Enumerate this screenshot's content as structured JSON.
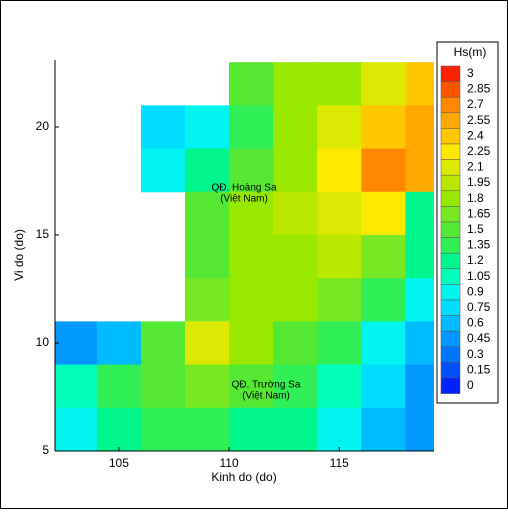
{
  "chart_data": {
    "type": "heatmap",
    "xlabel": "Kinh do (do)",
    "ylabel": "Vi do (do)",
    "xlim": [
      102.1,
      119.3
    ],
    "ylim": [
      5,
      23.1
    ],
    "xticks": [
      105,
      110,
      115
    ],
    "yticks": [
      5,
      10,
      15,
      20
    ],
    "x": [
      103,
      105,
      107,
      109,
      111,
      113,
      115,
      117,
      119
    ],
    "y": [
      22,
      20,
      18,
      16,
      14,
      12,
      10,
      8,
      6
    ],
    "values": [
      [
        null,
        null,
        null,
        null,
        1.5,
        1.8,
        1.9,
        2.1,
        2.4
      ],
      [
        null,
        null,
        0.8,
        0.9,
        1.4,
        1.8,
        2.1,
        2.5,
        2.6
      ],
      [
        null,
        null,
        1.0,
        1.2,
        1.6,
        1.9,
        2.3,
        2.8,
        2.6
      ],
      [
        null,
        null,
        null,
        1.6,
        1.9,
        2.0,
        2.2,
        2.3,
        1.3
      ],
      [
        null,
        null,
        null,
        1.6,
        1.8,
        1.9,
        2.0,
        1.7,
        1.2
      ],
      [
        null,
        null,
        null,
        1.7,
        1.8,
        1.8,
        1.7,
        1.4,
        0.9
      ],
      [
        0.5,
        0.7,
        1.6,
        2.2,
        1.9,
        1.6,
        1.4,
        1.0,
        0.7
      ],
      [
        1.1,
        1.4,
        1.6,
        1.7,
        1.6,
        1.4,
        1.1,
        0.8,
        0.5
      ],
      [
        1.0,
        1.2,
        1.4,
        1.4,
        1.3,
        1.2,
        0.9,
        0.6,
        0.5
      ]
    ],
    "annotations": [
      [
        "QĐ. Hoàng Sa",
        "(Việt Nam)"
      ],
      [
        "QĐ. Trường Sa",
        "(Việt Nam)"
      ]
    ],
    "colorbar": {
      "title": "Hs(m)",
      "ticks": [
        0,
        0.15,
        0.3,
        0.45,
        0.6,
        0.75,
        0.9,
        1.05,
        1.2,
        1.35,
        1.5,
        1.65,
        1.8,
        1.95,
        2.1,
        2.25,
        2.4,
        2.55,
        2.7,
        2.85,
        3
      ],
      "colors": [
        "#0022ff",
        "#0050ff",
        "#0075ff",
        "#0099ff",
        "#00bbff",
        "#00ddff",
        "#00f5f0",
        "#00ffbb",
        "#00f58a",
        "#30ee55",
        "#55e833",
        "#77e822",
        "#99e800",
        "#bbe800",
        "#dde800",
        "#ffe800",
        "#ffc800",
        "#ffa800",
        "#ff8800",
        "#ff5500",
        "#ff2200"
      ]
    }
  }
}
